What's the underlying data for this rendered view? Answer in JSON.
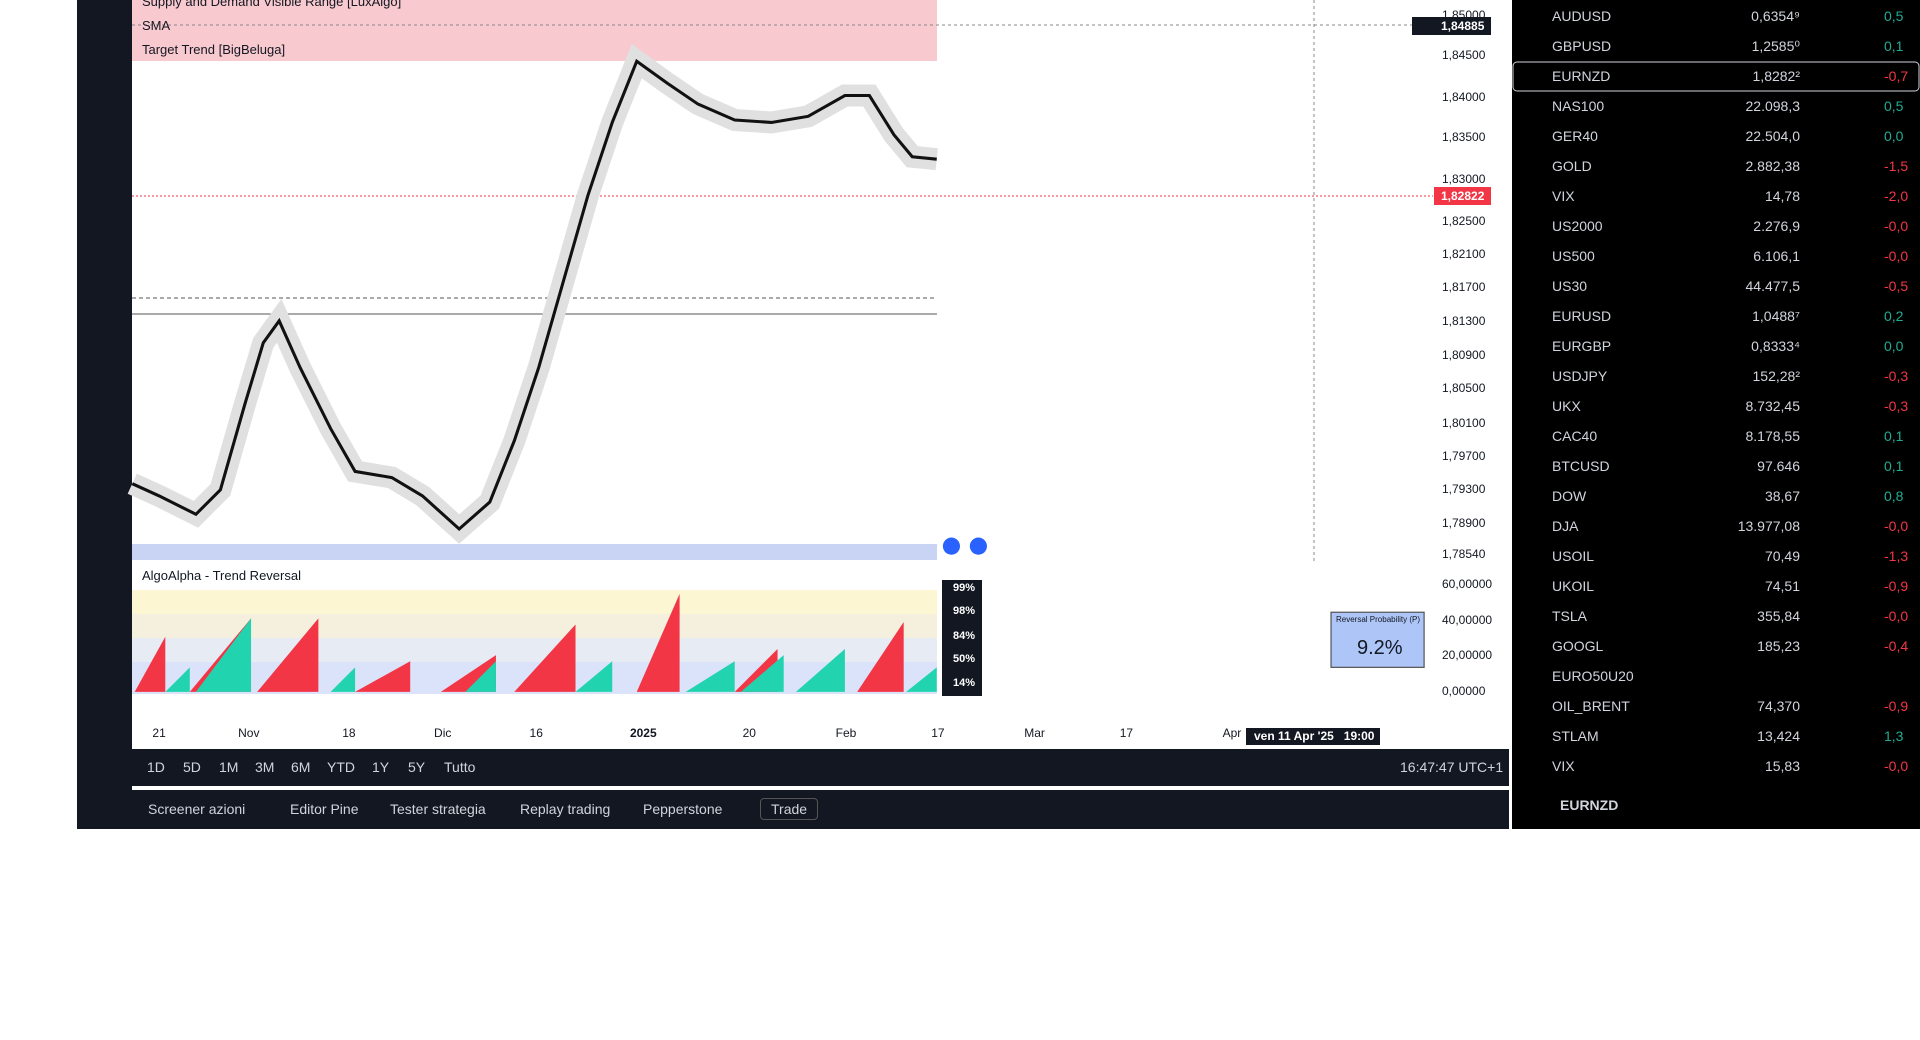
{
  "chart": {
    "indicators": [
      "Supply and Demand Visible Range [LuxAlgo]",
      "SMA",
      "Target Trend [BigBeluga]"
    ],
    "price_axis": [
      "1,85000",
      "1,84500",
      "1,84000",
      "1,83500",
      "1,83000",
      "1,82500",
      "1,82100",
      "1,81700",
      "1,81300",
      "1,80900",
      "1,80500",
      "1,80100",
      "1,79700",
      "1,79300",
      "1,78900",
      "1,78540"
    ],
    "price_tags": {
      "crosshair": "1,84885",
      "last": "1,82822"
    },
    "oscillator": {
      "title": "AlgoAlpha - Trend Reversal",
      "axis": [
        "60,00000",
        "40,00000",
        "20,00000",
        "0,00000"
      ],
      "levels": [
        "99%",
        "98%",
        "84%",
        "50%",
        "14%"
      ],
      "box_title": "Reversal Probability (P)",
      "box_value": "9.2%"
    },
    "time_axis": [
      "21",
      "Nov",
      "18",
      "Dic",
      "16",
      "2025",
      "20",
      "Feb",
      "17",
      "Mar",
      "17",
      "Apr"
    ],
    "crosshair_time": "ven 11 Apr '25   19:00",
    "ranges": [
      "1D",
      "5D",
      "1M",
      "3M",
      "6M",
      "YTD",
      "1Y",
      "5Y",
      "Tutto"
    ],
    "clock": "16:47:47 UTC+1"
  },
  "bottom_tabs": [
    "Screener azioni",
    "Editor Pine",
    "Tester strategia",
    "Replay trading",
    "Pepperstone",
    "Trade"
  ],
  "watchlist": {
    "rows": [
      {
        "symbol": "AUDUSD",
        "price": "0,6354⁹",
        "change": "0,5"
      },
      {
        "symbol": "GBPUSD",
        "price": "1,2585⁰",
        "change": "0,1"
      },
      {
        "symbol": "EURNZD",
        "price": "1,8282²",
        "change": "-0,7"
      },
      {
        "symbol": "NAS100",
        "price": "22.098,3",
        "change": "0,5"
      },
      {
        "symbol": "GER40",
        "price": "22.504,0",
        "change": "0,0"
      },
      {
        "symbol": "GOLD",
        "price": "2.882,38",
        "change": "-1,5"
      },
      {
        "symbol": "VIX",
        "price": "14,78",
        "change": "-2,0"
      },
      {
        "symbol": "US2000",
        "price": "2.276,9",
        "change": "-0,0"
      },
      {
        "symbol": "US500",
        "price": "6.106,1",
        "change": "-0,0"
      },
      {
        "symbol": "US30",
        "price": "44.477,5",
        "change": "-0,5"
      },
      {
        "symbol": "EURUSD",
        "price": "1,0488⁷",
        "change": "0,2"
      },
      {
        "symbol": "EURGBP",
        "price": "0,8333⁴",
        "change": "0,0"
      },
      {
        "symbol": "USDJPY",
        "price": "152,28²",
        "change": "-0,3"
      },
      {
        "symbol": "UKX",
        "price": "8.732,45",
        "change": "-0,3"
      },
      {
        "symbol": "CAC40",
        "price": "8.178,55",
        "change": "0,1"
      },
      {
        "symbol": "BTCUSD",
        "price": "97.646",
        "change": "0,1"
      },
      {
        "symbol": "DOW",
        "price": "38,67",
        "change": "0,8"
      },
      {
        "symbol": "DJA",
        "price": "13.977,08",
        "change": "-0,0"
      },
      {
        "symbol": "USOIL",
        "price": "70,49",
        "change": "-1,3"
      },
      {
        "symbol": "UKOIL",
        "price": "74,51",
        "change": "-0,9"
      },
      {
        "symbol": "TSLA",
        "price": "355,84",
        "change": "-0,0"
      },
      {
        "symbol": "GOOGL",
        "price": "185,23",
        "change": "-0,4"
      },
      {
        "symbol": "EURO50U20"
      },
      {
        "symbol": "OIL_BRENT",
        "price": "74,370",
        "change": "-0,9"
      },
      {
        "symbol": "STLAM",
        "price": "13,424",
        "change": "1,3"
      },
      {
        "symbol": "VIX",
        "price": "15,83",
        "change": "-0,0"
      }
    ],
    "selected": "EURNZD"
  }
}
